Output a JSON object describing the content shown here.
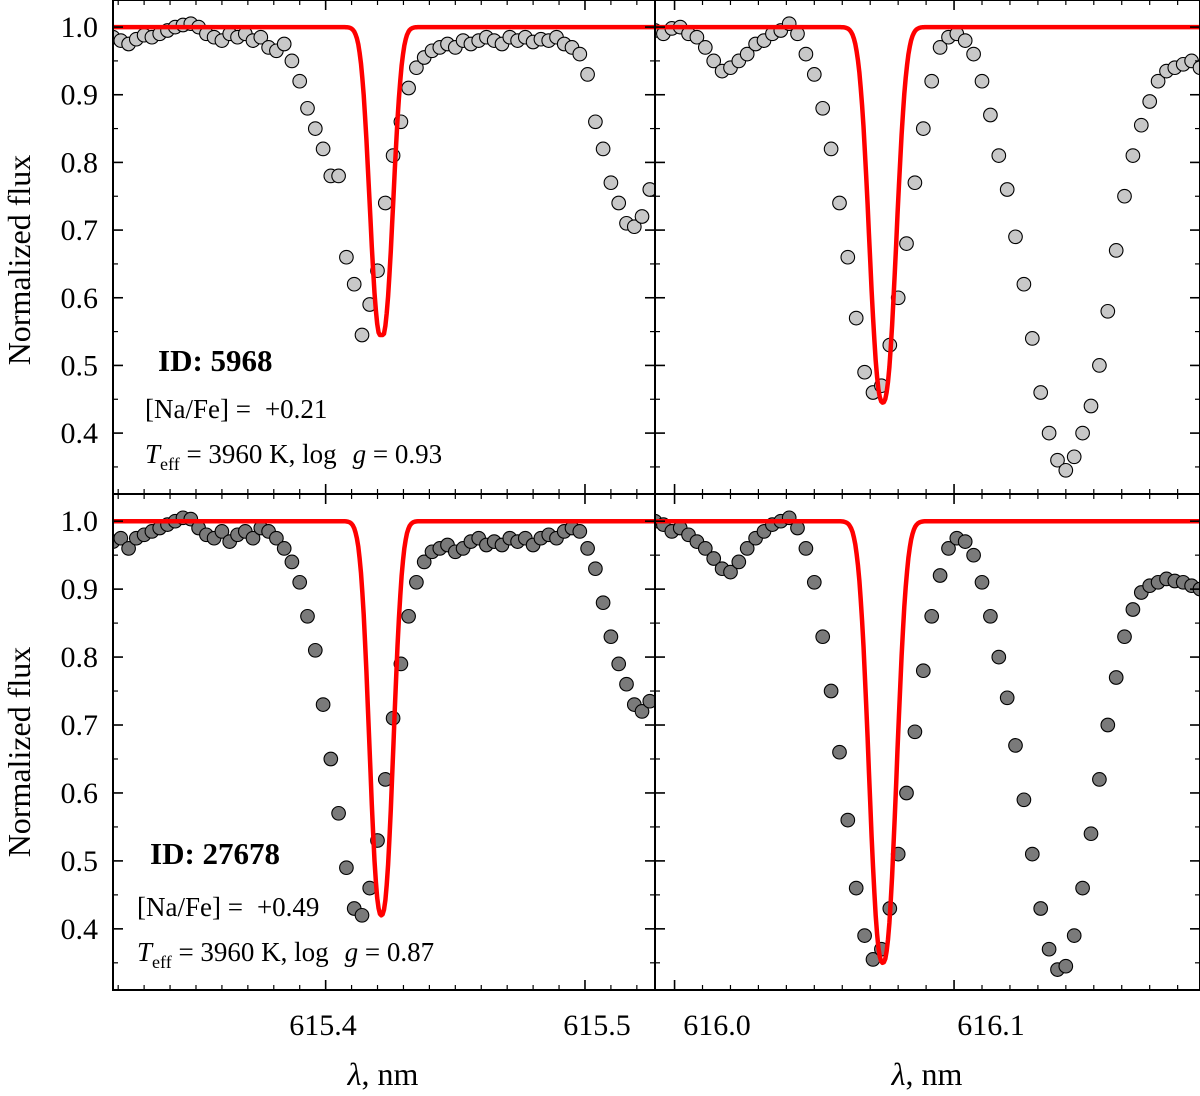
{
  "figure": {
    "ylabel": "Normalized flux",
    "xlabel_symbol": "λ",
    "xlabel_unit": ", nm",
    "ylim": [
      0.31,
      1.04
    ],
    "yticks": [
      0.4,
      0.5,
      0.6,
      0.7,
      0.8,
      0.9,
      1.0
    ],
    "ytick_labels": [
      "0.4",
      "0.5",
      "0.6",
      "0.7",
      "0.8",
      "0.9",
      "1.0"
    ],
    "colors": {
      "model": "#ff0000",
      "star1_marker": "#c8c8c8",
      "star2_marker": "#7a7a7a",
      "marker_edge": "#000000",
      "frame": "#000000"
    }
  },
  "stars": [
    {
      "id_label": "ID: 5968",
      "nafe_label": "[Na/Fe] =",
      "nafe_value": "+0.21",
      "teff_symbol": "T",
      "teff_sub": "eff",
      "teff_text": " = 3960 K, log",
      "logg_symbol": "g",
      "logg_text": " = 0.93"
    },
    {
      "id_label": "ID: 27678",
      "nafe_label": "[Na/Fe] =",
      "nafe_value": "+0.49",
      "teff_symbol": "T",
      "teff_sub": "eff",
      "teff_text": " = 3960 K, log",
      "logg_symbol": "g",
      "logg_text": " = 0.87"
    }
  ],
  "chart_data": [
    {
      "type": "scatter",
      "panel": "top-left",
      "star": "ID: 5968",
      "xlim": [
        615.318,
        615.527
      ],
      "xticks": [
        "615.4",
        "615.5"
      ],
      "model_line": {
        "center": 615.4215,
        "depth": 0.46,
        "sigma": 0.0043,
        "min": 0.545
      },
      "observed": {
        "x": [
          615.318,
          615.321,
          615.324,
          615.327,
          615.33,
          615.333,
          615.336,
          615.339,
          615.342,
          615.345,
          615.348,
          615.351,
          615.354,
          615.357,
          615.36,
          615.363,
          615.366,
          615.369,
          615.372,
          615.375,
          615.378,
          615.381,
          615.384,
          615.387,
          615.39,
          615.393,
          615.396,
          615.399,
          615.402,
          615.405,
          615.408,
          615.411,
          615.414,
          615.417,
          615.42,
          615.423,
          615.426,
          615.429,
          615.432,
          615.435,
          615.438,
          615.441,
          615.444,
          615.447,
          615.45,
          615.453,
          615.456,
          615.459,
          615.462,
          615.465,
          615.468,
          615.471,
          615.474,
          615.477,
          615.48,
          615.483,
          615.486,
          615.489,
          615.492,
          615.495,
          615.498,
          615.501,
          615.504,
          615.507,
          615.51,
          615.513,
          615.516,
          615.519,
          615.522,
          615.525
        ],
        "y": [
          0.985,
          0.98,
          0.975,
          0.982,
          0.988,
          0.985,
          0.99,
          0.995,
          1.0,
          1.003,
          1.005,
          1.0,
          0.99,
          0.985,
          0.98,
          0.99,
          0.985,
          0.99,
          0.98,
          0.985,
          0.97,
          0.965,
          0.975,
          0.95,
          0.92,
          0.88,
          0.85,
          0.82,
          0.78,
          0.78,
          0.66,
          0.62,
          0.545,
          0.59,
          0.64,
          0.74,
          0.81,
          0.86,
          0.91,
          0.94,
          0.955,
          0.965,
          0.97,
          0.975,
          0.97,
          0.98,
          0.975,
          0.98,
          0.985,
          0.98,
          0.975,
          0.985,
          0.98,
          0.985,
          0.978,
          0.982,
          0.98,
          0.985,
          0.975,
          0.97,
          0.96,
          0.93,
          0.86,
          0.82,
          0.77,
          0.74,
          0.71,
          0.705,
          0.72,
          0.76
        ]
      }
    },
    {
      "type": "scatter",
      "panel": "top-right",
      "star": "ID: 5968",
      "xlim": [
        615.993,
        616.188
      ],
      "xticks": [
        "616.0",
        "616.1"
      ],
      "model_line": {
        "center": 616.0745,
        "depth": 0.555,
        "sigma": 0.0046,
        "min": 0.445
      },
      "observed": {
        "x": [
          615.993,
          615.996,
          615.999,
          616.002,
          616.005,
          616.008,
          616.011,
          616.014,
          616.017,
          616.02,
          616.023,
          616.026,
          616.029,
          616.032,
          616.035,
          616.038,
          616.041,
          616.044,
          616.047,
          616.05,
          616.053,
          616.056,
          616.059,
          616.062,
          616.065,
          616.068,
          616.071,
          616.074,
          616.077,
          616.08,
          616.083,
          616.086,
          616.089,
          616.092,
          616.095,
          616.098,
          616.101,
          616.104,
          616.107,
          616.11,
          616.113,
          616.116,
          616.119,
          616.122,
          616.125,
          616.128,
          616.131,
          616.134,
          616.137,
          616.14,
          616.143,
          616.146,
          616.149,
          616.152,
          616.155,
          616.158,
          616.161,
          616.164,
          616.167,
          616.17,
          616.173,
          616.176,
          616.179,
          616.182,
          616.185,
          616.188
        ],
        "y": [
          0.995,
          0.99,
          0.998,
          1.0,
          0.99,
          0.985,
          0.97,
          0.95,
          0.935,
          0.94,
          0.95,
          0.96,
          0.975,
          0.98,
          0.99,
          0.995,
          1.005,
          0.99,
          0.96,
          0.93,
          0.88,
          0.82,
          0.74,
          0.66,
          0.57,
          0.49,
          0.46,
          0.47,
          0.53,
          0.6,
          0.68,
          0.77,
          0.85,
          0.92,
          0.97,
          0.985,
          0.99,
          0.98,
          0.96,
          0.92,
          0.87,
          0.81,
          0.76,
          0.69,
          0.62,
          0.54,
          0.46,
          0.4,
          0.36,
          0.345,
          0.365,
          0.4,
          0.44,
          0.5,
          0.58,
          0.67,
          0.75,
          0.81,
          0.855,
          0.89,
          0.92,
          0.935,
          0.94,
          0.945,
          0.95,
          0.94
        ]
      }
    },
    {
      "type": "scatter",
      "panel": "bottom-left",
      "star": "ID: 27678",
      "xlim": [
        615.318,
        615.527
      ],
      "xticks": [
        "615.4",
        "615.5"
      ],
      "model_line": {
        "center": 615.4215,
        "depth": 0.58,
        "sigma": 0.0044,
        "min": 0.42
      },
      "observed": {
        "x": [
          615.318,
          615.321,
          615.324,
          615.327,
          615.33,
          615.333,
          615.336,
          615.339,
          615.342,
          615.345,
          615.348,
          615.351,
          615.354,
          615.357,
          615.36,
          615.363,
          615.366,
          615.369,
          615.372,
          615.375,
          615.378,
          615.381,
          615.384,
          615.387,
          615.39,
          615.393,
          615.396,
          615.399,
          615.402,
          615.405,
          615.408,
          615.411,
          615.414,
          615.417,
          615.42,
          615.423,
          615.426,
          615.429,
          615.432,
          615.435,
          615.438,
          615.441,
          615.444,
          615.447,
          615.45,
          615.453,
          615.456,
          615.459,
          615.462,
          615.465,
          615.468,
          615.471,
          615.474,
          615.477,
          615.48,
          615.483,
          615.486,
          615.489,
          615.492,
          615.495,
          615.498,
          615.501,
          615.504,
          615.507,
          615.51,
          615.513,
          615.516,
          615.519,
          615.522,
          615.525
        ],
        "y": [
          0.97,
          0.975,
          0.96,
          0.975,
          0.98,
          0.985,
          0.99,
          0.995,
          1.0,
          1.005,
          1.003,
          0.99,
          0.98,
          0.975,
          0.985,
          0.97,
          0.98,
          0.985,
          0.975,
          0.99,
          0.985,
          0.975,
          0.96,
          0.94,
          0.91,
          0.86,
          0.81,
          0.73,
          0.65,
          0.57,
          0.49,
          0.43,
          0.42,
          0.46,
          0.53,
          0.62,
          0.71,
          0.79,
          0.86,
          0.91,
          0.94,
          0.955,
          0.96,
          0.965,
          0.955,
          0.96,
          0.97,
          0.975,
          0.965,
          0.97,
          0.965,
          0.975,
          0.97,
          0.975,
          0.965,
          0.975,
          0.98,
          0.975,
          0.985,
          0.99,
          0.985,
          0.96,
          0.93,
          0.88,
          0.83,
          0.79,
          0.76,
          0.73,
          0.72,
          0.735
        ]
      }
    },
    {
      "type": "scatter",
      "panel": "bottom-right",
      "star": "ID: 27678",
      "xlim": [
        615.993,
        616.188
      ],
      "xticks": [
        "616.0",
        "616.1"
      ],
      "model_line": {
        "center": 616.0745,
        "depth": 0.65,
        "sigma": 0.0047,
        "min": 0.35
      },
      "observed": {
        "x": [
          615.993,
          615.996,
          615.999,
          616.002,
          616.005,
          616.008,
          616.011,
          616.014,
          616.017,
          616.02,
          616.023,
          616.026,
          616.029,
          616.032,
          616.035,
          616.038,
          616.041,
          616.044,
          616.047,
          616.05,
          616.053,
          616.056,
          616.059,
          616.062,
          616.065,
          616.068,
          616.071,
          616.074,
          616.077,
          616.08,
          616.083,
          616.086,
          616.089,
          616.092,
          616.095,
          616.098,
          616.101,
          616.104,
          616.107,
          616.11,
          616.113,
          616.116,
          616.119,
          616.122,
          616.125,
          616.128,
          616.131,
          616.134,
          616.137,
          616.14,
          616.143,
          616.146,
          616.149,
          616.152,
          616.155,
          616.158,
          616.161,
          616.164,
          616.167,
          616.17,
          616.173,
          616.176,
          616.179,
          616.182,
          616.185,
          616.188
        ],
        "y": [
          1.0,
          0.995,
          0.985,
          0.99,
          0.98,
          0.97,
          0.96,
          0.945,
          0.93,
          0.925,
          0.94,
          0.96,
          0.975,
          0.985,
          0.995,
          1.0,
          1.005,
          0.99,
          0.96,
          0.91,
          0.83,
          0.75,
          0.66,
          0.56,
          0.46,
          0.39,
          0.355,
          0.37,
          0.43,
          0.51,
          0.6,
          0.69,
          0.78,
          0.86,
          0.92,
          0.96,
          0.975,
          0.97,
          0.95,
          0.91,
          0.86,
          0.8,
          0.74,
          0.67,
          0.59,
          0.51,
          0.43,
          0.37,
          0.34,
          0.345,
          0.39,
          0.46,
          0.54,
          0.62,
          0.7,
          0.77,
          0.83,
          0.87,
          0.895,
          0.905,
          0.91,
          0.915,
          0.912,
          0.91,
          0.905,
          0.9
        ]
      }
    }
  ]
}
